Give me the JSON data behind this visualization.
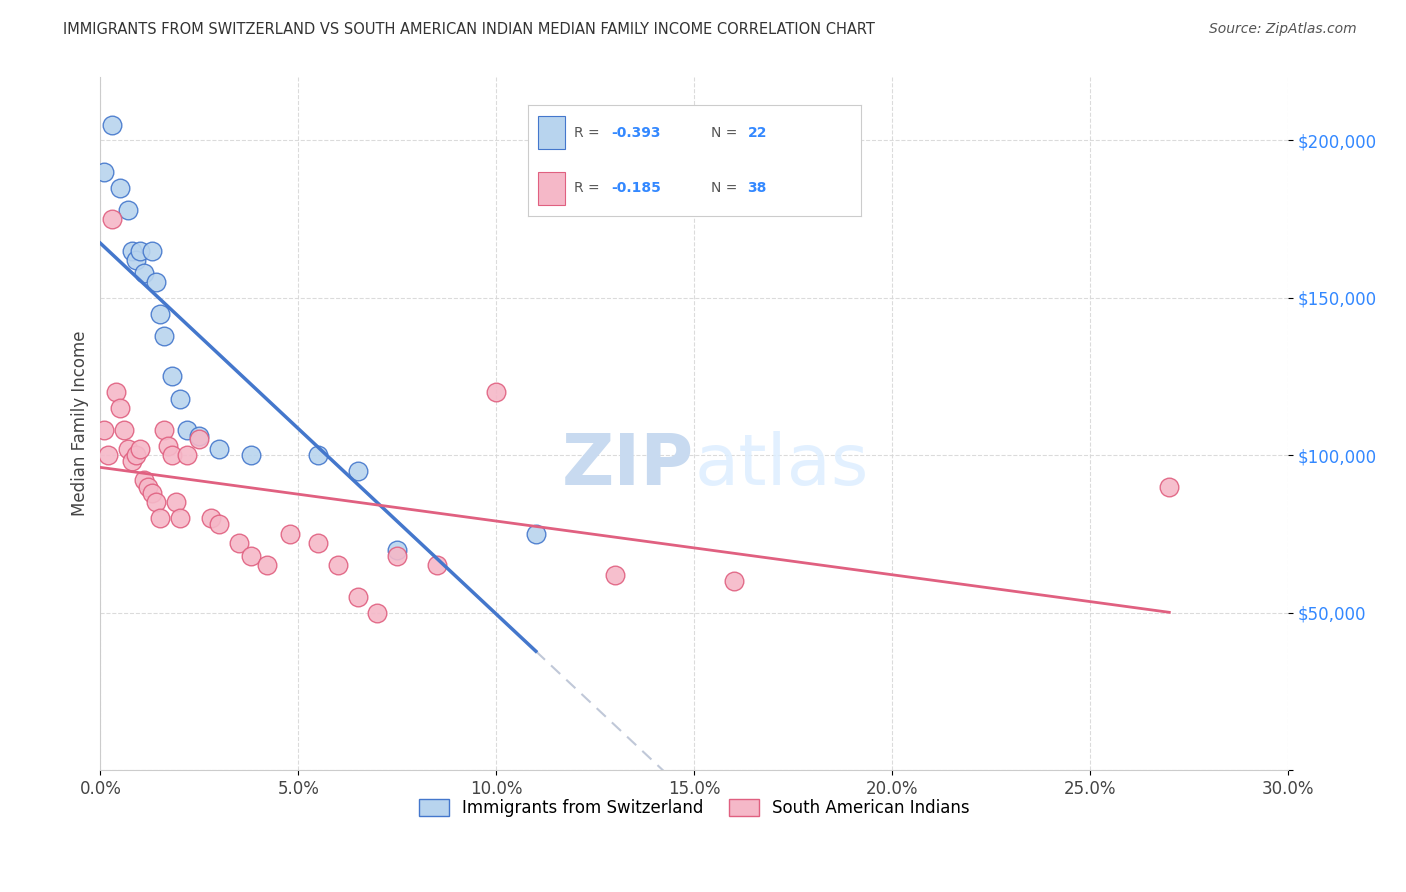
{
  "title": "IMMIGRANTS FROM SWITZERLAND VS SOUTH AMERICAN INDIAN MEDIAN FAMILY INCOME CORRELATION CHART",
  "source": "Source: ZipAtlas.com",
  "ylabel": "Median Family Income",
  "y_ticks": [
    0,
    50000,
    100000,
    150000,
    200000
  ],
  "y_tick_labels": [
    "",
    "$50,000",
    "$100,000",
    "$150,000",
    "$200,000"
  ],
  "x_range": [
    0.0,
    0.3
  ],
  "y_range": [
    0,
    220000
  ],
  "legend_label1": "Immigrants from Switzerland",
  "legend_label2": "South American Indians",
  "r1": "-0.393",
  "n1": "22",
  "r2": "-0.185",
  "n2": "38",
  "color_swiss": "#b8d4ee",
  "color_sa_indian": "#f5b8c8",
  "color_swiss_line": "#4477cc",
  "color_sa_indian_line": "#e06080",
  "color_dashed_line": "#c0c8d8",
  "watermark_zip": "ZIP",
  "watermark_atlas": "atlas",
  "swiss_x": [
    0.001,
    0.003,
    0.005,
    0.007,
    0.008,
    0.009,
    0.01,
    0.011,
    0.013,
    0.014,
    0.015,
    0.016,
    0.018,
    0.02,
    0.022,
    0.025,
    0.03,
    0.038,
    0.055,
    0.065,
    0.075,
    0.11
  ],
  "swiss_y": [
    190000,
    205000,
    185000,
    178000,
    165000,
    162000,
    165000,
    158000,
    165000,
    155000,
    145000,
    138000,
    125000,
    118000,
    108000,
    106000,
    102000,
    100000,
    100000,
    95000,
    70000,
    75000
  ],
  "sa_indian_x": [
    0.001,
    0.002,
    0.003,
    0.004,
    0.005,
    0.006,
    0.007,
    0.008,
    0.009,
    0.01,
    0.011,
    0.012,
    0.013,
    0.014,
    0.015,
    0.016,
    0.017,
    0.018,
    0.019,
    0.02,
    0.022,
    0.025,
    0.028,
    0.03,
    0.035,
    0.038,
    0.042,
    0.048,
    0.055,
    0.06,
    0.065,
    0.07,
    0.075,
    0.085,
    0.1,
    0.13,
    0.16,
    0.27
  ],
  "sa_indian_y": [
    108000,
    100000,
    175000,
    120000,
    115000,
    108000,
    102000,
    98000,
    100000,
    102000,
    92000,
    90000,
    88000,
    85000,
    80000,
    108000,
    103000,
    100000,
    85000,
    80000,
    100000,
    105000,
    80000,
    78000,
    72000,
    68000,
    65000,
    75000,
    72000,
    65000,
    55000,
    50000,
    68000,
    65000,
    120000,
    62000,
    60000,
    90000
  ],
  "background_color": "#ffffff",
  "grid_color": "#d8d8d8"
}
